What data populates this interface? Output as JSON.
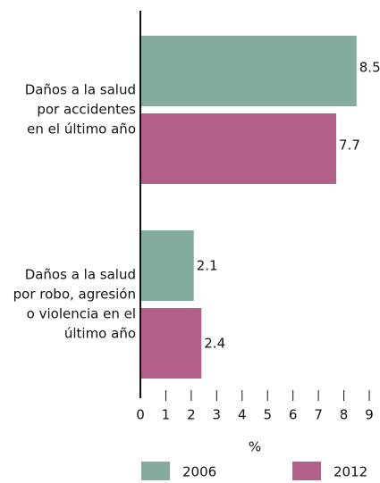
{
  "chart_data": {
    "type": "bar",
    "orientation": "horizontal",
    "categories": [
      [
        "Daños a la salud",
        "por accidentes",
        "en el último año"
      ],
      [
        "Daños a la salud",
        "por robo, agresión",
        "o violencia en el",
        "último año"
      ]
    ],
    "series": [
      {
        "name": "2006",
        "color": "#85ab9c",
        "values": [
          8.5,
          2.1
        ]
      },
      {
        "name": "2012",
        "color": "#b2608a",
        "values": [
          7.7,
          2.4
        ]
      }
    ],
    "xlabel": "%",
    "xlim": [
      0,
      9
    ],
    "xticks": [
      0,
      1,
      2,
      3,
      4,
      5,
      6,
      7,
      8,
      9
    ]
  }
}
